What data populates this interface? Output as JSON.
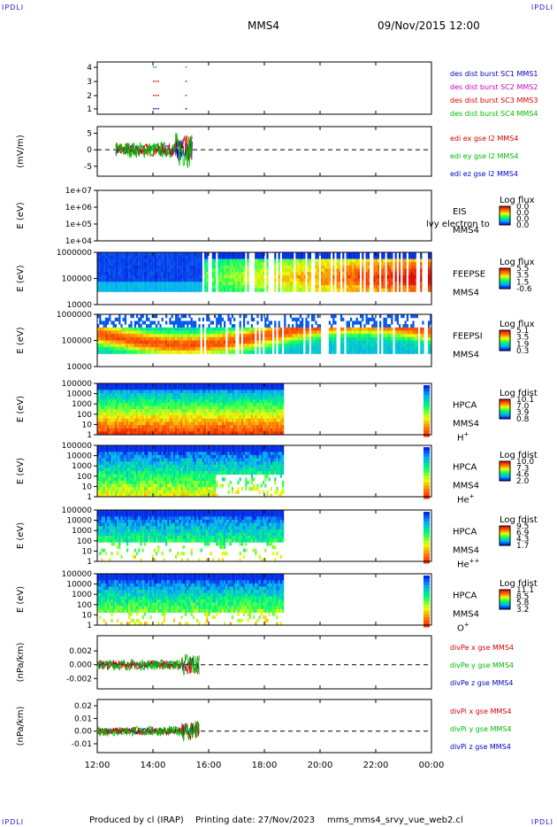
{
  "header": {
    "corner_mark": "IPDLI",
    "title": "MMS4",
    "datetime": "09/Nov/2015 12:00"
  },
  "footer": {
    "produced": "Produced by cl (IRAP)",
    "printing": "Printing date: 27/Nov/2023",
    "script": "mms_mms4_srvy_vue_web2.cl"
  },
  "time_axis": {
    "ticks": [
      "12:00",
      "14:00",
      "16:00",
      "18:00",
      "20:00",
      "22:00",
      "00:00"
    ]
  },
  "colors": {
    "mms1": "#0000cc",
    "mms2": "#cc00cc",
    "mms3": "#dd0000",
    "mms4": "#00bb00",
    "x": "#dd0000",
    "y": "#00bb00",
    "z": "#0000cc"
  },
  "chart_data": [
    {
      "type": "scatter",
      "name": "burst",
      "yticks": [
        "1",
        "2",
        "3",
        "4"
      ],
      "legend": [
        "des dist burst SC1 MMS1",
        "des dist burst SC2 MMS2",
        "des dist burst SC3 MMS3",
        "des dist burst SC4 MMS4"
      ],
      "series": [
        {
          "level": 1,
          "color_key": "mms1",
          "times": [
            "14:00",
            "14:05",
            "14:10",
            "15:10"
          ]
        },
        {
          "level": 2,
          "color_key": "mms3",
          "times": [
            "14:00",
            "14:05",
            "14:10",
            "15:10"
          ]
        },
        {
          "level": 3,
          "color_key": "mms3",
          "times": [
            "14:00",
            "14:05",
            "14:10",
            "15:10"
          ]
        },
        {
          "level": 4,
          "color_key": "mms4",
          "times": [
            "14:00",
            "14:05",
            "15:10"
          ]
        }
      ]
    },
    {
      "type": "line",
      "name": "edi",
      "ylabel": "(mV/m)",
      "yticks": [
        "5",
        "0",
        "-5"
      ],
      "ylim": [
        -8,
        7
      ],
      "legend": [
        "edi ex gse l2 MMS4",
        "edi ey gse l2 MMS4",
        "edi ez gse l2 MMS4"
      ],
      "time_range": [
        "12:40",
        "15:25"
      ],
      "amplitude": 2.5
    },
    {
      "type": "heatmap",
      "name": "eis",
      "ylabel": "E (eV)",
      "yticks": [
        "1e+07",
        "1e+06",
        "1e+05",
        "1e+04"
      ],
      "instrument": [
        "EIS",
        "MMS4"
      ],
      "overlay": "lvy electron to",
      "cb_title": "Log flux",
      "cb_ticks": [
        "0.0",
        "0.0",
        "0.0",
        "0.0"
      ],
      "empty": true
    },
    {
      "type": "heatmap",
      "name": "feepse",
      "ylabel": "E (eV)",
      "yticks": [
        "1000000",
        "100000",
        "10000"
      ],
      "instrument": [
        "FEEPSE",
        "MMS4"
      ],
      "cb_title": "Log flux",
      "cb_ticks": [
        "5.5",
        "3.5",
        "1.5",
        "-0.6"
      ],
      "time_range": [
        "12:00",
        "00:00"
      ],
      "style": "feeps_e"
    },
    {
      "type": "heatmap",
      "name": "feepsi",
      "ylabel": "E (eV)",
      "yticks": [
        "1000000",
        "100000",
        "10000"
      ],
      "instrument": [
        "FEEPSI",
        "MMS4"
      ],
      "cb_title": "Log flux",
      "cb_ticks": [
        "5.1",
        "3.5",
        "1.9",
        "0.3"
      ],
      "time_range": [
        "12:00",
        "00:00"
      ],
      "style": "feeps_i"
    },
    {
      "type": "heatmap",
      "name": "hpca-h",
      "ylabel": "E (eV)",
      "yticks": [
        "100000",
        "10000",
        "1000",
        "100",
        "10",
        "1"
      ],
      "instrument": [
        "HPCA",
        "MMS4"
      ],
      "species": "H",
      "species_sup": "+",
      "cb_title": "Log fdist",
      "cb_ticks": [
        "10.1",
        "7.0",
        "3.9",
        "0.8"
      ],
      "time_range": [
        "12:00",
        "18:40"
      ],
      "style": "hpca_h"
    },
    {
      "type": "heatmap",
      "name": "hpca-he",
      "ylabel": "E (eV)",
      "yticks": [
        "100000",
        "10000",
        "1000",
        "100",
        "10",
        "1"
      ],
      "instrument": [
        "HPCA",
        "MMS4"
      ],
      "species": "He",
      "species_sup": "+",
      "cb_title": "Log fdist",
      "cb_ticks": [
        "10.0",
        "7.3",
        "4.6",
        "2.0"
      ],
      "time_range": [
        "12:00",
        "18:40"
      ],
      "style": "hpca_he"
    },
    {
      "type": "heatmap",
      "name": "hpca-hepp",
      "ylabel": "E (eV)",
      "yticks": [
        "100000",
        "10000",
        "1000",
        "100",
        "10",
        "1"
      ],
      "instrument": [
        "HPCA",
        "MMS4"
      ],
      "species": "He",
      "species_sup": "++",
      "cb_title": "Log fdist",
      "cb_ticks": [
        "9.5",
        "6.9",
        "4.3",
        "1.7"
      ],
      "time_range": [
        "12:00",
        "18:40"
      ],
      "style": "hpca_hepp"
    },
    {
      "type": "heatmap",
      "name": "hpca-o",
      "ylabel": "E (eV)",
      "yticks": [
        "100000",
        "10000",
        "1000",
        "100",
        "10",
        "1"
      ],
      "instrument": [
        "HPCA",
        "MMS4"
      ],
      "species": "O",
      "species_sup": "+",
      "cb_title": "Log fdist",
      "cb_ticks": [
        "11.1",
        "8.5",
        "5.8",
        "3.2"
      ],
      "time_range": [
        "12:00",
        "18:40"
      ],
      "style": "hpca_o"
    },
    {
      "type": "line",
      "name": "divpe",
      "ylabel": "(nPa/km)",
      "yticks": [
        "0.002",
        "0.000",
        "-0.002"
      ],
      "ylim": [
        -0.0035,
        0.0042
      ],
      "legend": [
        "divPe x gse MMS4",
        "divPe y gse MMS4",
        "divPe z gse MMS4"
      ],
      "time_range": [
        "12:00",
        "15:40"
      ],
      "amplitude": 0.0008
    },
    {
      "type": "line",
      "name": "divpi",
      "ylabel": "(nPa/km)",
      "yticks": [
        "0.02",
        "0.01",
        "0.00",
        "-0.01"
      ],
      "ylim": [
        -0.017,
        0.025
      ],
      "legend": [
        "divPi x gse MMS4",
        "divPi y gse MMS4",
        "divPi z gse MMS4"
      ],
      "time_range": [
        "12:00",
        "15:40"
      ],
      "amplitude": 0.004
    }
  ]
}
